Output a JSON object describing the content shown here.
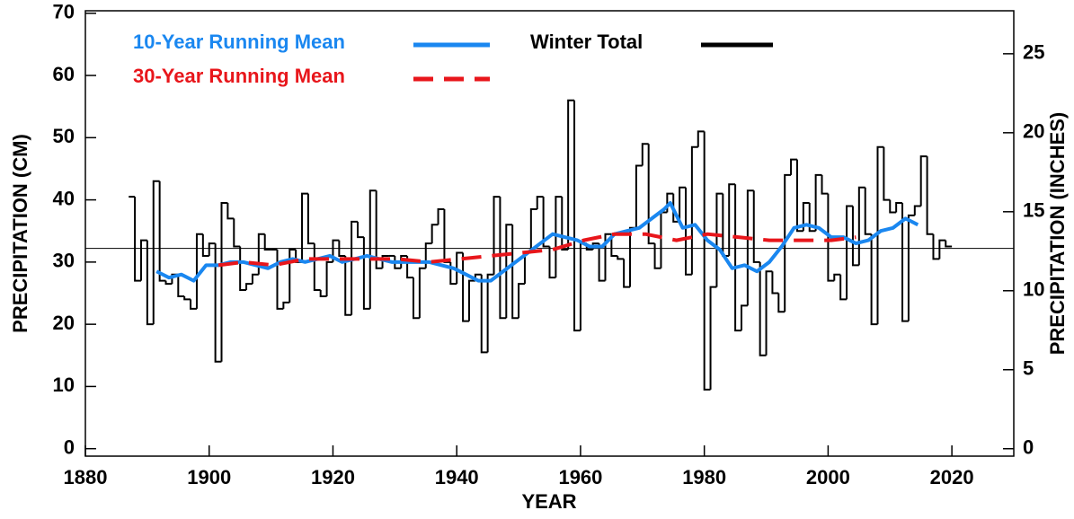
{
  "chart_data": {
    "type": "line",
    "x_label": "YEAR",
    "y_label": "PRECIPITATION (CM)",
    "y2_label": "PRECIPITATION (INCHES)",
    "xlim": [
      1880,
      2030
    ],
    "xticks": [
      1880,
      1900,
      1920,
      1940,
      1960,
      1980,
      2000,
      2020
    ],
    "ylim": [
      -1.2,
      70.4
    ],
    "yticks": [
      0,
      10,
      20,
      30,
      40,
      50,
      60,
      70
    ],
    "y2lim": [
      -0.47,
      27.72
    ],
    "y2ticks": [
      0,
      5,
      10,
      15,
      20,
      25
    ],
    "reference_line": 32.2,
    "legend": "upper left",
    "series": [
      {
        "name": "Winter Total",
        "color": "#000000",
        "style": "step",
        "x": [
          1887,
          1888,
          1889,
          1890,
          1891,
          1892,
          1893,
          1894,
          1895,
          1896,
          1897,
          1898,
          1899,
          1900,
          1901,
          1902,
          1903,
          1904,
          1905,
          1906,
          1907,
          1908,
          1909,
          1910,
          1911,
          1912,
          1913,
          1914,
          1915,
          1916,
          1917,
          1918,
          1919,
          1920,
          1921,
          1922,
          1923,
          1924,
          1925,
          1926,
          1927,
          1928,
          1929,
          1930,
          1931,
          1932,
          1933,
          1934,
          1935,
          1936,
          1937,
          1938,
          1939,
          1940,
          1941,
          1942,
          1943,
          1944,
          1945,
          1946,
          1947,
          1948,
          1949,
          1950,
          1951,
          1952,
          1953,
          1954,
          1955,
          1956,
          1957,
          1958,
          1959,
          1960,
          1961,
          1962,
          1963,
          1964,
          1965,
          1966,
          1967,
          1968,
          1969,
          1970,
          1971,
          1972,
          1973,
          1974,
          1975,
          1976,
          1977,
          1978,
          1979,
          1980,
          1981,
          1982,
          1983,
          1984,
          1985,
          1986,
          1987,
          1988,
          1989,
          1990,
          1991,
          1992,
          1993,
          1994,
          1995,
          1996,
          1997,
          1998,
          1999,
          2000,
          2001,
          2002,
          2003,
          2004,
          2005,
          2006,
          2007,
          2008,
          2009,
          2010,
          2011,
          2012,
          2013,
          2014,
          2015,
          2016,
          2017,
          2018,
          2019
        ],
        "values": [
          40.5,
          27,
          33.5,
          20,
          43,
          27,
          26.5,
          28,
          24.5,
          24,
          22.5,
          34.5,
          31,
          33,
          14,
          39.5,
          37,
          32.5,
          25.5,
          26.5,
          28,
          34.5,
          32,
          32,
          22.5,
          23.5,
          32,
          30,
          41,
          33,
          25.5,
          24.5,
          30,
          33.5,
          31,
          21.5,
          36.5,
          34,
          22.5,
          41.5,
          29,
          31,
          31,
          29,
          31,
          27.5,
          21,
          29,
          33,
          36,
          38.5,
          30,
          26.5,
          31.5,
          20.5,
          27,
          28,
          15.5,
          28,
          40.5,
          21,
          36,
          21,
          26.5,
          31.5,
          38.5,
          40.5,
          32.5,
          27.5,
          40.5,
          32,
          56,
          19,
          33,
          32,
          33,
          27,
          34.5,
          31,
          30.5,
          26,
          35.5,
          45.5,
          49,
          33,
          29,
          38,
          41,
          36.5,
          42,
          28,
          48.5,
          51,
          9.5,
          26,
          41,
          31,
          42.5,
          19,
          23,
          41.5,
          30,
          15,
          28.5,
          25,
          22,
          44,
          46.5,
          35,
          39.5,
          35,
          44,
          41,
          27,
          28,
          24,
          39,
          29.5,
          42,
          34.5,
          20,
          48.5,
          40,
          38,
          39.5,
          20.5,
          37.5,
          39,
          47,
          34.5,
          30.5,
          33.5,
          32.5
        ]
      },
      {
        "name": "10-Year Running Mean",
        "color": "#1a87f0",
        "style": "solid",
        "x": [
          1891,
          1893,
          1895,
          1897,
          1899,
          1901,
          1903,
          1905,
          1907,
          1909,
          1911,
          1913,
          1915,
          1917,
          1919,
          1921,
          1923,
          1925,
          1927,
          1929,
          1931,
          1933,
          1935,
          1937,
          1939,
          1941,
          1943,
          1945,
          1947,
          1949,
          1951,
          1953,
          1955,
          1957,
          1959,
          1961,
          1963,
          1965,
          1967,
          1969,
          1971,
          1973,
          1974,
          1976,
          1978,
          1980,
          1982,
          1984,
          1986,
          1988,
          1990,
          1992,
          1994,
          1996,
          1998,
          2000,
          2002,
          2004,
          2006,
          2008,
          2010,
          2012,
          2014
        ],
        "values": [
          28.5,
          27.5,
          28,
          27,
          29.5,
          29.5,
          30,
          30,
          29.5,
          29,
          30,
          30.5,
          30,
          30.5,
          31,
          30,
          30.5,
          31,
          30.5,
          30,
          30,
          30,
          30,
          29.5,
          29,
          28,
          27,
          27,
          28.5,
          30,
          31.5,
          33,
          34.5,
          34,
          33.5,
          32.5,
          32.5,
          34.5,
          35,
          35.5,
          37,
          38.5,
          39.5,
          35.5,
          36,
          33.5,
          32,
          29,
          29.5,
          28.5,
          30,
          32.5,
          35.5,
          36,
          35.5,
          34,
          34,
          33,
          33.5,
          35,
          35.5,
          37,
          36
        ]
      },
      {
        "name": "30-Year Running Mean",
        "color": "#e8161b",
        "style": "dashed",
        "x": [
          1901,
          1905,
          1910,
          1915,
          1920,
          1925,
          1930,
          1935,
          1940,
          1945,
          1950,
          1955,
          1960,
          1965,
          1970,
          1975,
          1980,
          1985,
          1990,
          1995,
          2000,
          2004
        ],
        "values": [
          29.5,
          30,
          29.5,
          30.5,
          30.5,
          30.5,
          30.5,
          30,
          30.5,
          31,
          31.5,
          32,
          33.5,
          34.5,
          34.5,
          33.5,
          34.5,
          34,
          33.5,
          33.5,
          33.5,
          34
        ]
      }
    ]
  }
}
